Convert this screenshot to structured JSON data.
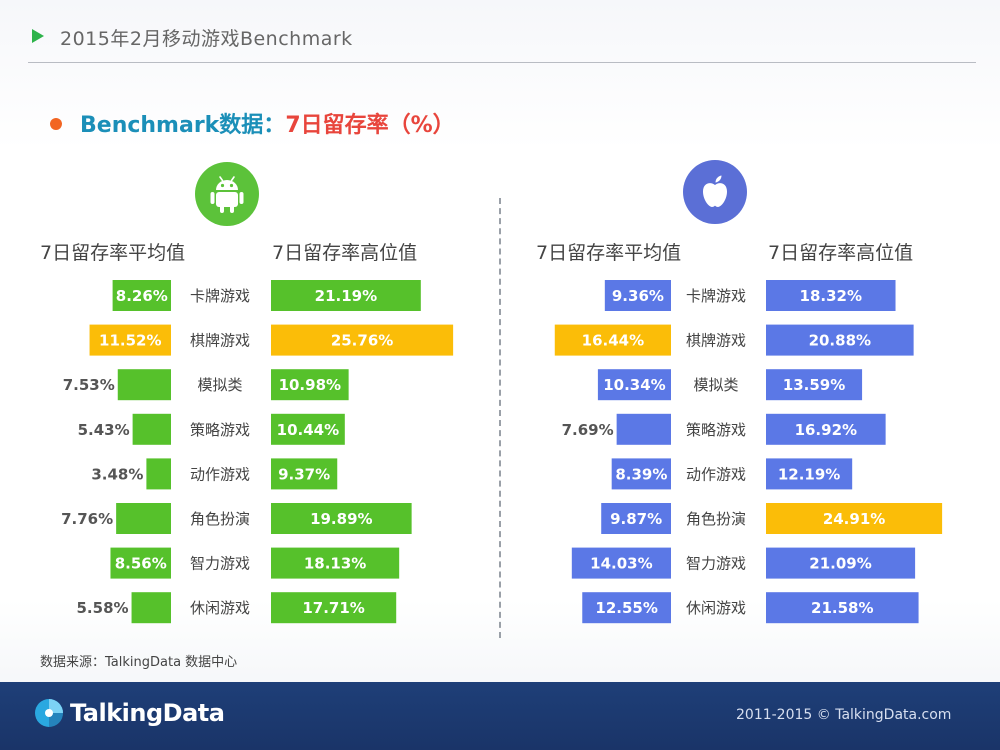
{
  "header": {
    "title": "2015年2月移动游戏Benchmark"
  },
  "subtitle": {
    "part_a": "Benchmark数据：",
    "part_b": "7日留存率（%）"
  },
  "android": {
    "icon": "android-icon",
    "col_avg": "7日留存率平均值",
    "col_high": "7日留存率高位值"
  },
  "ios": {
    "icon": "apple-icon",
    "col_avg": "7日留存率平均值",
    "col_high": "7日留存率高位值"
  },
  "source": "数据来源：TalkingData 数据中心",
  "footer": {
    "logo": "TalkingData",
    "copyright": "2011-2015 © TalkingData.com"
  },
  "colors": {
    "android_bar": "#56c12b",
    "ios_bar": "#5b78e6",
    "highlight_bar": "#fbbd08"
  },
  "chart_data": [
    {
      "type": "bar",
      "platform": "Android",
      "categories": [
        "卡牌游戏",
        "棋牌游戏",
        "模拟类",
        "策略游戏",
        "动作游戏",
        "角色扮演",
        "智力游戏",
        "休闲游戏"
      ],
      "series": [
        {
          "name": "7日留存率平均值",
          "values": [
            8.26,
            11.52,
            7.53,
            5.43,
            3.48,
            7.76,
            8.56,
            5.58
          ],
          "labels": [
            "8.26%",
            "11.52%",
            "7.53%",
            "5.43%",
            "3.48%",
            "7.76%",
            "8.56%",
            "5.58%"
          ]
        },
        {
          "name": "7日留存率高位值",
          "values": [
            21.19,
            25.76,
            10.98,
            10.44,
            9.37,
            19.89,
            18.13,
            17.71
          ],
          "labels": [
            "21.19%",
            "25.76%",
            "10.98%",
            "10.44%",
            "9.37%",
            "19.89%",
            "18.13%",
            "17.71%"
          ]
        }
      ],
      "highlight": {
        "7日留存率平均值": "棋牌游戏",
        "7日留存率高位值": "棋牌游戏"
      }
    },
    {
      "type": "bar",
      "platform": "iOS",
      "categories": [
        "卡牌游戏",
        "棋牌游戏",
        "模拟类",
        "策略游戏",
        "动作游戏",
        "角色扮演",
        "智力游戏",
        "休闲游戏"
      ],
      "series": [
        {
          "name": "7日留存率平均值",
          "values": [
            9.36,
            16.44,
            10.34,
            7.69,
            8.39,
            9.87,
            14.03,
            12.55
          ],
          "labels": [
            "9.36%",
            "16.44%",
            "10.34%",
            "7.69%",
            "8.39%",
            "9.87%",
            "14.03%",
            "12.55%"
          ]
        },
        {
          "name": "7日留存率高位值",
          "values": [
            18.32,
            20.88,
            13.59,
            16.92,
            12.19,
            24.91,
            21.09,
            21.58
          ],
          "labels": [
            "18.32%",
            "20.88%",
            "13.59%",
            "16.92%",
            "12.19%",
            "24.91%",
            "21.09%",
            "21.58%"
          ]
        }
      ],
      "highlight": {
        "7日留存率平均值": "棋牌游戏",
        "7日留存率高位值": "角色扮演"
      }
    }
  ]
}
